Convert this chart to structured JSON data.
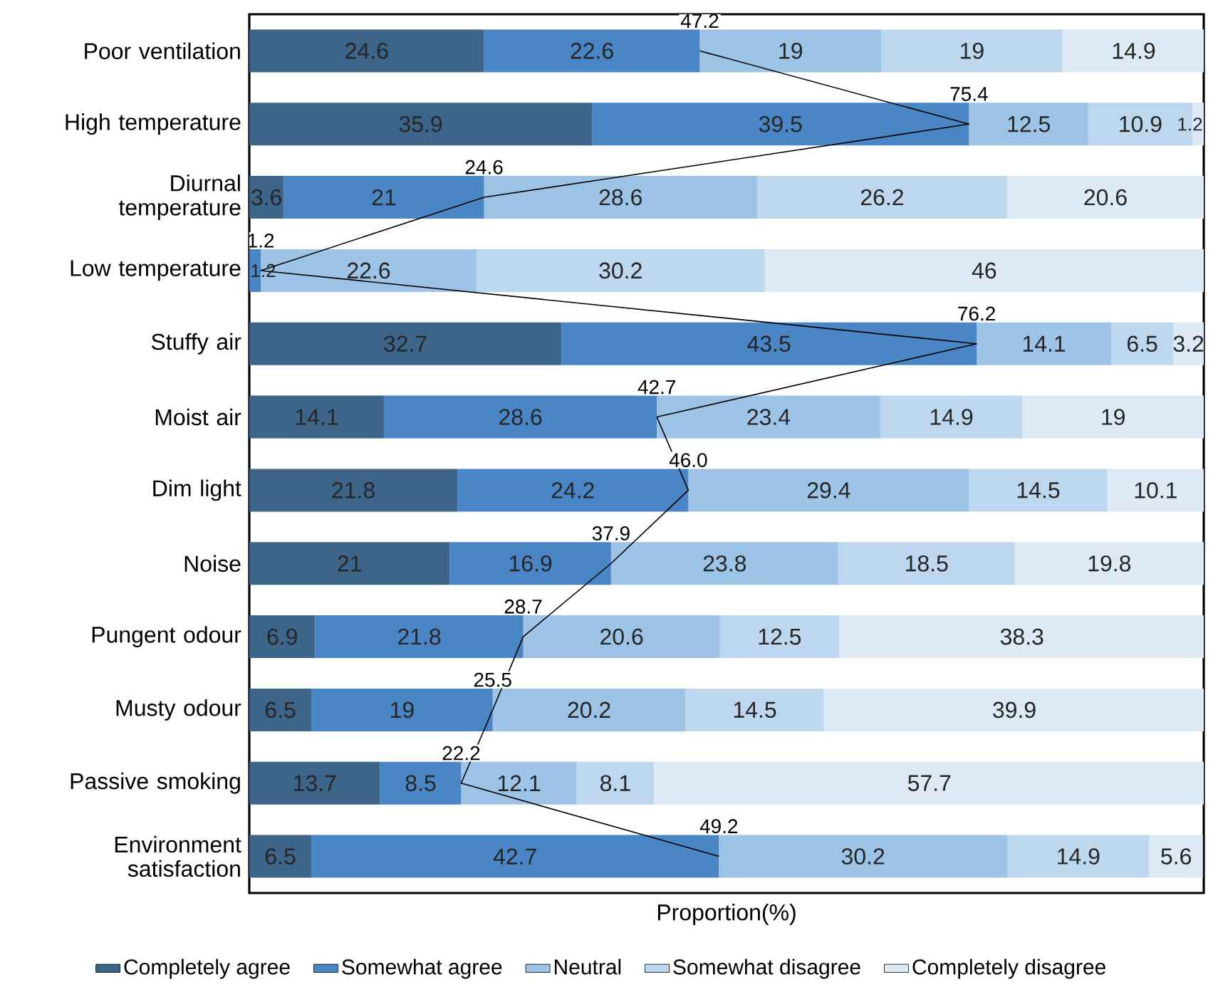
{
  "chart_data": {
    "type": "bar",
    "orientation": "horizontal",
    "stacked": true,
    "xlabel": "Proportion(%)",
    "xlim": [
      0,
      100
    ],
    "tick_labels": "y",
    "legend": "bottom",
    "data_labels": true,
    "categories": [
      "Poor ventilation",
      "High temperature",
      "Diurnal temperature",
      "Low temperature",
      "Stuffy air",
      "Moist air",
      "Dim light",
      "Noise",
      "Pungent odour",
      "Musty odour",
      "Passive smoking",
      "Environment satisfaction"
    ],
    "series": [
      {
        "name": "Completely agree",
        "color": "#3d6489",
        "values": [
          24.6,
          35.9,
          3.6,
          null,
          32.7,
          14.1,
          21.8,
          21,
          6.9,
          6.5,
          13.7,
          6.5
        ]
      },
      {
        "name": "Somewhat agree",
        "color": "#4a86c5",
        "values": [
          22.6,
          39.5,
          21,
          1.2,
          43.5,
          28.6,
          24.2,
          16.9,
          21.8,
          19,
          8.5,
          42.7
        ]
      },
      {
        "name": "Neutral",
        "color": "#9dc3e6",
        "values": [
          19,
          12.5,
          28.6,
          22.6,
          14.1,
          23.4,
          29.4,
          23.8,
          20.6,
          20.2,
          12.1,
          30.2
        ]
      },
      {
        "name": "Somewhat disagree",
        "color": "#bcd7ee",
        "values": [
          19,
          10.9,
          26.2,
          30.2,
          6.5,
          14.9,
          14.5,
          18.5,
          12.5,
          14.5,
          8.1,
          14.9
        ]
      },
      {
        "name": "Completely disagree",
        "color": "#dde9f5",
        "values": [
          14.9,
          1.2,
          20.6,
          46,
          3.2,
          19,
          10.1,
          19.8,
          38.3,
          39.9,
          57.7,
          5.6
        ]
      },
      {
        "type": "line",
        "color": "#000000",
        "values": [
          47.2,
          75.4,
          24.6,
          1.2,
          76.2,
          42.7,
          46.0,
          37.9,
          28.7,
          25.5,
          22.2,
          49.2
        ],
        "value_labels": [
          "47.2",
          "75.4",
          "24.6",
          "1.2",
          "76.2",
          "42.7",
          "46.0",
          "37.9",
          "28.7",
          "25.5",
          "22.2",
          "49.2"
        ]
      }
    ]
  }
}
